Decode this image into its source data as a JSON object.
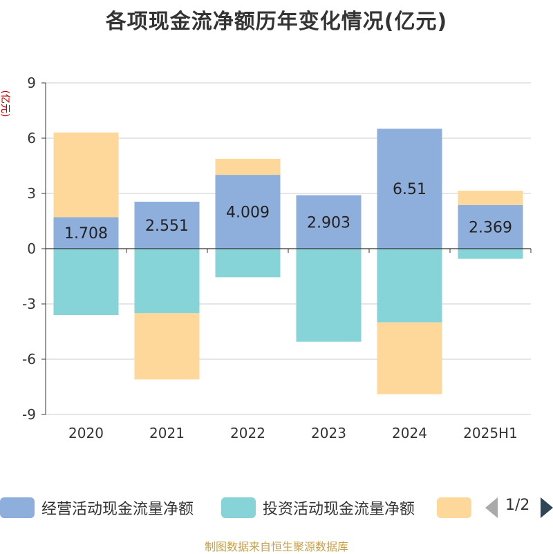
{
  "title": "各项现金流净额历年变化情况(亿元)",
  "unit_label": "(亿元)",
  "source": "制图数据来自恒生聚源数据库",
  "legend": {
    "items": [
      {
        "label": "经营活动现金流量净额",
        "color": "#8eaedb"
      },
      {
        "label": "投资活动现金流量净额",
        "color": "#86d4d8"
      },
      {
        "label": "",
        "color": "#fdd89a"
      }
    ],
    "page": "1/2"
  },
  "chart_data": {
    "type": "bar",
    "stacked": true,
    "categories": [
      "2020",
      "2021",
      "2022",
      "2023",
      "2024",
      "2025H1"
    ],
    "ylim": [
      -9,
      9
    ],
    "yticks": [
      9,
      6,
      3,
      0,
      -3,
      -6,
      -9
    ],
    "grid": true,
    "legend_position": "bottom",
    "series": [
      {
        "name": "经营活动现金流量净额",
        "color": "#8eaedb",
        "values": [
          1.708,
          2.551,
          4.009,
          2.903,
          6.51,
          2.369
        ],
        "labels": [
          "1.708",
          "2.551",
          "4.009",
          "2.903",
          "6.51",
          "2.369"
        ]
      },
      {
        "name": "投资活动现金流量净额",
        "color": "#86d4d8",
        "values": [
          -3.6,
          -3.5,
          -1.55,
          -5.05,
          -4.0,
          -0.55
        ]
      },
      {
        "color": "#fdd89a",
        "values": [
          4.6,
          -3.6,
          0.87,
          0.0,
          -3.9,
          0.78
        ]
      }
    ]
  }
}
